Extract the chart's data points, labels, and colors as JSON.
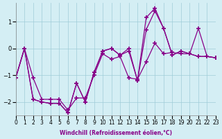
{
  "xlabel": "Windchill (Refroidissement éolien,°C)",
  "bg_color": "#d4eef4",
  "line_color": "#880088",
  "xlim": [
    0,
    23
  ],
  "ylim": [
    -2.5,
    1.7
  ],
  "yticks": [
    -2,
    -1,
    0,
    1
  ],
  "xticks": [
    0,
    1,
    2,
    3,
    4,
    5,
    6,
    7,
    8,
    9,
    10,
    11,
    12,
    13,
    14,
    15,
    16,
    17,
    18,
    19,
    20,
    21,
    22,
    23
  ],
  "line1_x": [
    0,
    1,
    2,
    3,
    4,
    5,
    6,
    7,
    8,
    9,
    10,
    11,
    12,
    13,
    14,
    15,
    16,
    17,
    18,
    19,
    20,
    21,
    22,
    23
  ],
  "line1_y": [
    -1.1,
    0.0,
    -1.1,
    -1.9,
    -1.9,
    -1.9,
    -2.3,
    -1.85,
    -1.85,
    -1.0,
    -0.2,
    -0.4,
    -0.3,
    -1.1,
    -1.15,
    -0.5,
    0.2,
    -0.2,
    -0.15,
    -0.2,
    -0.2,
    -0.3,
    -0.3,
    -0.35
  ],
  "line2_x": [
    0,
    1,
    2,
    3,
    4,
    5,
    6,
    7,
    8,
    9,
    10,
    11,
    12,
    13,
    14,
    15,
    16,
    17,
    18,
    19,
    20,
    21,
    22,
    23
  ],
  "line2_y": [
    -1.1,
    0.0,
    -1.9,
    -2.0,
    -2.05,
    -2.05,
    -2.4,
    -1.3,
    -2.0,
    -0.9,
    -0.1,
    0.0,
    -0.25,
    -0.1,
    -1.2,
    0.7,
    1.4,
    0.75,
    -0.25,
    -0.1,
    -0.2,
    -0.3,
    -0.3,
    -0.35
  ],
  "line3_x": [
    0,
    1,
    2,
    3,
    4,
    5,
    6,
    7,
    8,
    9,
    10,
    11,
    12,
    13,
    14,
    15,
    16,
    17,
    18,
    19,
    20,
    21,
    22,
    23
  ],
  "line3_y": [
    -1.1,
    0.0,
    -1.9,
    -2.0,
    -2.05,
    -2.05,
    -2.4,
    -1.3,
    -2.0,
    -0.9,
    -0.1,
    0.0,
    -0.25,
    0.0,
    -1.2,
    1.15,
    1.5,
    0.75,
    -0.25,
    -0.1,
    -0.2,
    0.75,
    -0.3,
    -0.35
  ]
}
